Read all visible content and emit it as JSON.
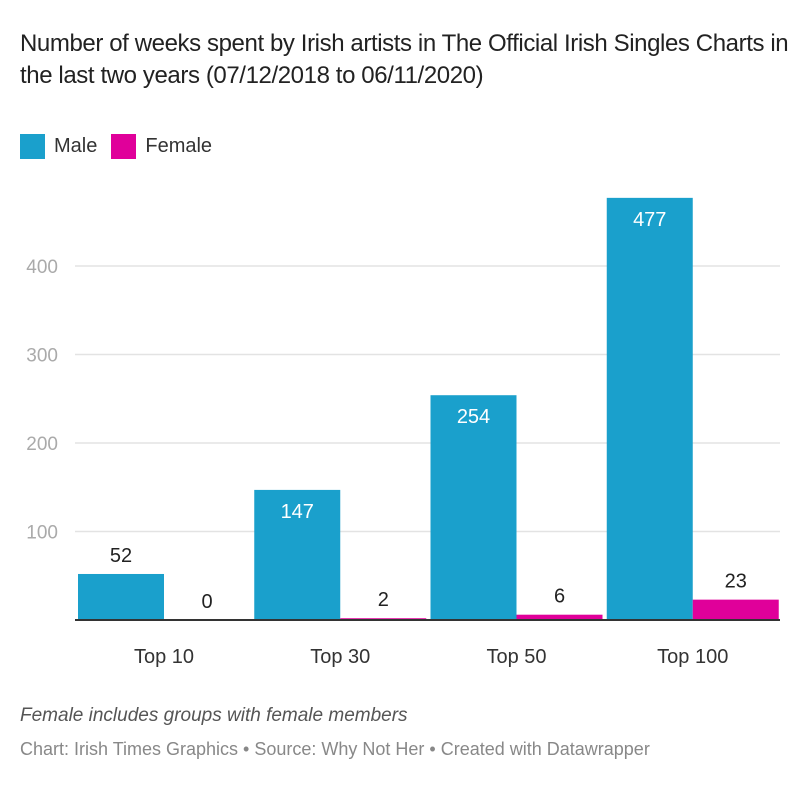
{
  "chart_data": {
    "type": "bar",
    "title": "Number of weeks spent by Irish artists in The Official Irish Singles Charts in the last two years (07/12/2018 to 06/11/2020)",
    "categories": [
      "Top 10",
      "Top 30",
      "Top 50",
      "Top 100"
    ],
    "series": [
      {
        "name": "Male",
        "color": "#1aa0cc",
        "values": [
          52,
          147,
          254,
          477
        ]
      },
      {
        "name": "Female",
        "color": "#e0009a",
        "values": [
          0,
          2,
          6,
          23
        ]
      }
    ],
    "xlabel": "",
    "ylabel": "",
    "ylim": [
      0,
      480
    ],
    "yticks": [
      100,
      200,
      300,
      400
    ],
    "grid": true,
    "legend_position": "top-left"
  },
  "legend": [
    {
      "label": "Male",
      "color": "#1aa0cc"
    },
    {
      "label": "Female",
      "color": "#e0009a"
    }
  ],
  "footer": {
    "note": "Female includes groups with female members",
    "credit": "Chart: Irish Times Graphics • Source: Why Not Her • Created with Datawrapper"
  }
}
